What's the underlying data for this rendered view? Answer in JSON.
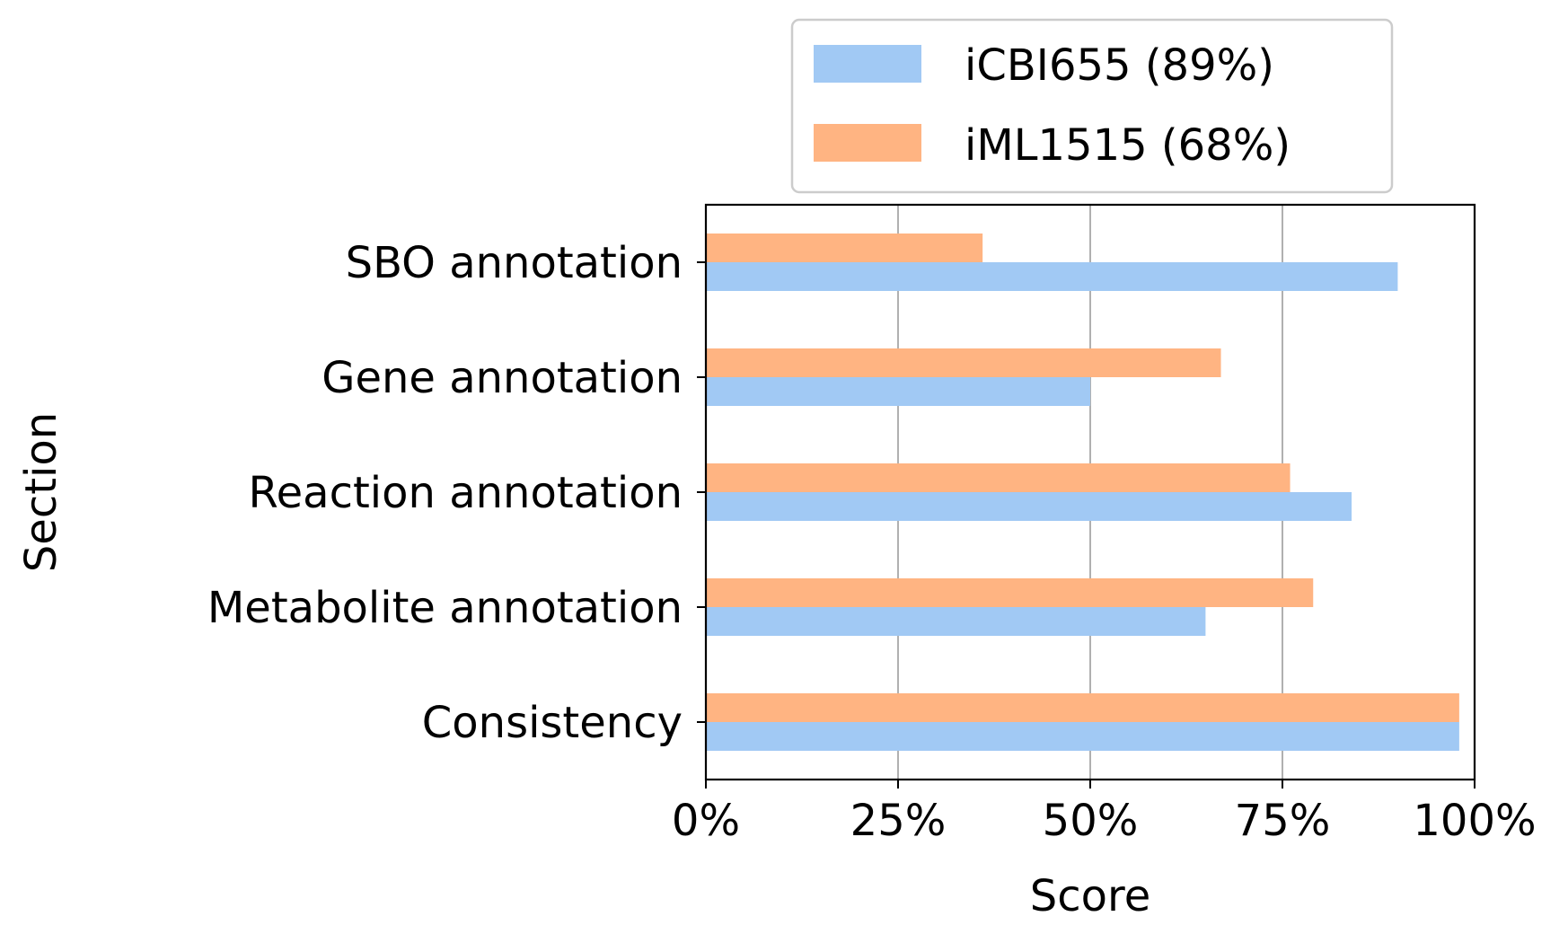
{
  "chart_data": {
    "type": "bar",
    "orientation": "horizontal",
    "categories": [
      "SBO annotation",
      "Gene annotation",
      "Reaction annotation",
      "Metabolite annotation",
      "Consistency"
    ],
    "series": [
      {
        "name": "iCBI655 (89%)",
        "color": "#a1c9f4",
        "values": [
          90,
          50,
          84,
          65,
          98
        ]
      },
      {
        "name": "iML1515 (68%)",
        "color": "#ffb482",
        "values": [
          36,
          67,
          76,
          79,
          98
        ]
      }
    ],
    "xlabel": "Score",
    "ylabel": "Section",
    "xlim": [
      0,
      100
    ],
    "xticks": [
      0,
      25,
      50,
      75,
      100
    ],
    "xtick_labels": [
      "0%",
      "25%",
      "50%",
      "75%",
      "100%"
    ],
    "grid": "vertical",
    "legend_position": "top"
  }
}
